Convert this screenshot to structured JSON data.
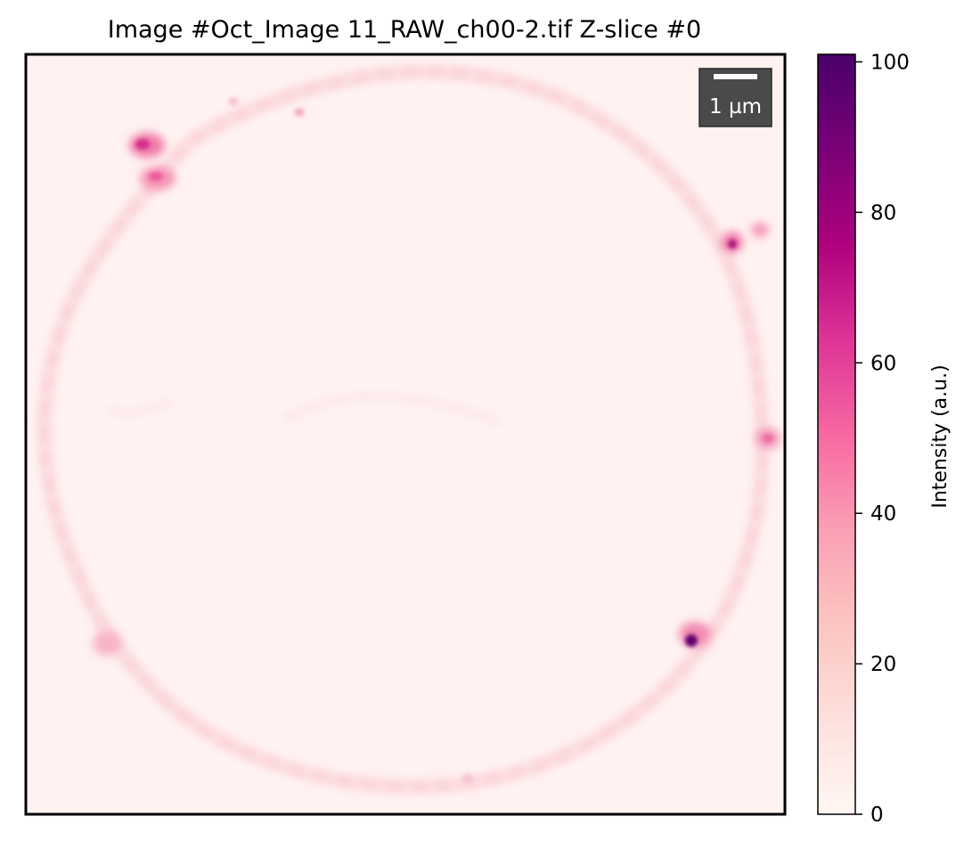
{
  "figure": {
    "title": "Image #Oct_Image 11_RAW_ch00-2.tif Z-slice #0"
  },
  "scale_bar": {
    "label": "1 µm",
    "background_color": "#4a4a4a",
    "bar_color": "#ffffff"
  },
  "colorbar": {
    "label": "Intensity (a.u.)",
    "range": [
      0,
      101
    ],
    "ticks": [
      0,
      20,
      40,
      60,
      80,
      100
    ],
    "tick_labels": [
      "0",
      "20",
      "40",
      "60",
      "80",
      "100"
    ],
    "colormap": "RdPu",
    "colormap_stops": [
      "#fff7f3",
      "#fde0dd",
      "#fcc5c0",
      "#fa9fb5",
      "#f768a1",
      "#dd3497",
      "#ae017e",
      "#7a0177",
      "#49006a"
    ]
  },
  "image": {
    "background_color": "#fff1f0"
  }
}
